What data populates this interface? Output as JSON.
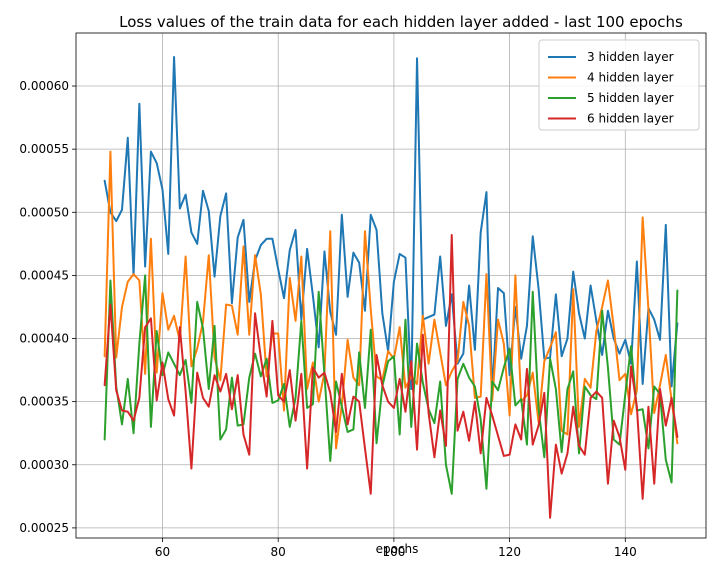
{
  "chart_data": {
    "type": "line",
    "title": "Loss values of the train data for each hidden layer added - last 100 epochs",
    "xlabel": "epochs",
    "ylabel": "",
    "xlim": [
      45.05,
      153.95
    ],
    "ylim": [
      0.000242,
      0.000642
    ],
    "xticks": [
      60,
      80,
      100,
      120,
      140
    ],
    "yticks": [
      0.00025,
      0.0003,
      0.00035,
      0.0004,
      0.00045,
      0.0005,
      0.00055,
      0.0006
    ],
    "ytick_labels": [
      "0.00025",
      "0.00030",
      "0.00035",
      "0.00040",
      "0.00045",
      "0.00050",
      "0.00055",
      "0.00060"
    ],
    "grid": true,
    "legend_position": "top-right",
    "x_start": 50,
    "series": [
      {
        "name": "3 hidden layer",
        "color": "#1f77b4",
        "values": [
          0.000525,
          0.0005,
          0.000493,
          0.000502,
          0.000559,
          0.00045,
          0.000586,
          0.000457,
          0.000548,
          0.000539,
          0.000518,
          0.000467,
          0.000623,
          0.000503,
          0.000514,
          0.000484,
          0.000475,
          0.000517,
          0.000501,
          0.000449,
          0.000497,
          0.000515,
          0.000428,
          0.00048,
          0.000494,
          0.000429,
          0.000462,
          0.000474,
          0.000479,
          0.000479,
          0.000455,
          0.000432,
          0.00047,
          0.000486,
          0.000415,
          0.000471,
          0.000434,
          0.000393,
          0.000469,
          0.000421,
          0.000403,
          0.000498,
          0.000433,
          0.000468,
          0.00046,
          0.000422,
          0.000498,
          0.000486,
          0.00042,
          0.00039,
          0.000445,
          0.000467,
          0.000464,
          0.00036,
          0.000622,
          0.000415,
          0.000417,
          0.000419,
          0.000465,
          0.00041,
          0.000435,
          0.00038,
          0.000388,
          0.000442,
          0.000391,
          0.000484,
          0.000516,
          0.000357,
          0.00044,
          0.000436,
          0.000371,
          0.000425,
          0.000384,
          0.00041,
          0.000481,
          0.00044,
          0.000384,
          0.000385,
          0.000435,
          0.000386,
          0.0004,
          0.000453,
          0.00042,
          0.0004,
          0.000442,
          0.000414,
          0.000387,
          0.000422,
          0.0004,
          0.000388,
          0.000399,
          0.00038,
          0.000461,
          0.000364,
          0.000424,
          0.000415,
          0.000399,
          0.00049,
          0.000362,
          0.000412
        ]
      },
      {
        "name": "4 hidden layer",
        "color": "#ff7f0e",
        "values": [
          0.000386,
          0.000548,
          0.000385,
          0.000425,
          0.000445,
          0.000451,
          0.000446,
          0.000372,
          0.000479,
          0.000373,
          0.000436,
          0.000407,
          0.000418,
          0.000398,
          0.000465,
          0.000378,
          0.000392,
          0.000413,
          0.000466,
          0.000385,
          0.000367,
          0.000427,
          0.000426,
          0.000403,
          0.000473,
          0.000403,
          0.000466,
          0.000435,
          0.00037,
          0.000404,
          0.000404,
          0.000343,
          0.000448,
          0.000414,
          0.000465,
          0.00036,
          0.000381,
          0.00035,
          0.000373,
          0.000485,
          0.000313,
          0.000347,
          0.000399,
          0.000369,
          0.000363,
          0.000485,
          0.000423,
          0.00037,
          0.000367,
          0.00039,
          0.000384,
          0.000409,
          0.000361,
          0.00037,
          0.000364,
          0.000418,
          0.00038,
          0.000415,
          0.000389,
          0.000363,
          0.000374,
          0.000382,
          0.000429,
          0.00041,
          0.000353,
          0.000354,
          0.000451,
          0.000351,
          0.000415,
          0.000396,
          0.000339,
          0.00045,
          0.00035,
          0.000355,
          0.000373,
          0.000334,
          0.000382,
          0.000393,
          0.000405,
          0.000327,
          0.000324,
          0.000439,
          0.00033,
          0.000368,
          0.000361,
          0.000406,
          0.000425,
          0.000446,
          0.000409,
          0.000367,
          0.000372,
          0.00034,
          0.000359,
          0.000496,
          0.000423,
          0.000341,
          0.000363,
          0.000387,
          0.000351,
          0.000317
        ]
      },
      {
        "name": "5 hidden layer",
        "color": "#2ca02c",
        "values": [
          0.00032,
          0.000446,
          0.000362,
          0.000332,
          0.000368,
          0.000325,
          0.000396,
          0.00045,
          0.00033,
          0.000406,
          0.000371,
          0.000389,
          0.00038,
          0.000371,
          0.000383,
          0.000349,
          0.000429,
          0.000408,
          0.00036,
          0.00041,
          0.00032,
          0.000328,
          0.000369,
          0.000331,
          0.000332,
          0.000369,
          0.000388,
          0.00037,
          0.000384,
          0.000349,
          0.000351,
          0.000364,
          0.00033,
          0.000353,
          0.000414,
          0.000345,
          0.000348,
          0.000437,
          0.000371,
          0.000303,
          0.000366,
          0.000346,
          0.000326,
          0.000328,
          0.000389,
          0.000345,
          0.000407,
          0.000317,
          0.000362,
          0.000382,
          0.000386,
          0.000324,
          0.000415,
          0.00033,
          0.000396,
          0.000365,
          0.000344,
          0.000333,
          0.000366,
          0.0003,
          0.000277,
          0.000368,
          0.00038,
          0.000369,
          0.000362,
          0.000336,
          0.000281,
          0.000366,
          0.000359,
          0.000377,
          0.000392,
          0.000347,
          0.000352,
          0.000316,
          0.000437,
          0.000345,
          0.000306,
          0.000384,
          0.00036,
          0.00031,
          0.00036,
          0.000374,
          0.000309,
          0.000362,
          0.000355,
          0.000352,
          0.000422,
          0.000377,
          0.00032,
          0.000316,
          0.000356,
          0.000394,
          0.000343,
          0.000344,
          0.000313,
          0.000362,
          0.000356,
          0.000304,
          0.000286,
          0.000438
        ]
      },
      {
        "name": "6 hidden layer",
        "color": "#d62728",
        "values": [
          0.000363,
          0.000427,
          0.000359,
          0.000343,
          0.000342,
          0.000335,
          0.000353,
          0.000409,
          0.000416,
          0.000351,
          0.000381,
          0.000352,
          0.000339,
          0.000409,
          0.000358,
          0.000297,
          0.000373,
          0.000353,
          0.000346,
          0.000371,
          0.000358,
          0.000372,
          0.000344,
          0.000371,
          0.000324,
          0.000308,
          0.00042,
          0.000385,
          0.000354,
          0.000414,
          0.000355,
          0.00035,
          0.000375,
          0.000335,
          0.000372,
          0.000297,
          0.000377,
          0.000369,
          0.000373,
          0.000357,
          0.000326,
          0.000372,
          0.000332,
          0.000354,
          0.00035,
          0.000313,
          0.000277,
          0.000387,
          0.000363,
          0.00035,
          0.000345,
          0.000368,
          0.000342,
          0.000382,
          0.000312,
          0.000403,
          0.000341,
          0.000306,
          0.000343,
          0.000315,
          0.000482,
          0.000327,
          0.000342,
          0.000319,
          0.00035,
          0.000309,
          0.000353,
          0.000339,
          0.000323,
          0.000307,
          0.000308,
          0.000332,
          0.00032,
          0.000376,
          0.000316,
          0.000331,
          0.000357,
          0.000258,
          0.000316,
          0.000293,
          0.000309,
          0.000346,
          0.000315,
          0.000308,
          0.000353,
          0.000358,
          0.000353,
          0.000285,
          0.000335,
          0.000322,
          0.000296,
          0.000378,
          0.000346,
          0.000273,
          0.000346,
          0.000285,
          0.00036,
          0.000331,
          0.000353,
          0.000322
        ]
      }
    ]
  }
}
